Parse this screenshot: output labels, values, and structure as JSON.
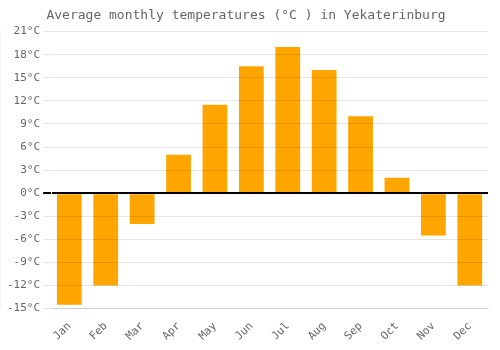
{
  "chart_data": {
    "type": "bar",
    "title": "Average monthly temperatures (°C ) in Yekaterinburg",
    "categories": [
      "Jan",
      "Feb",
      "Mar",
      "Apr",
      "May",
      "Jun",
      "Jul",
      "Aug",
      "Sep",
      "Oct",
      "Nov",
      "Dec"
    ],
    "values": [
      -14.5,
      -12.0,
      -4.0,
      5.0,
      11.5,
      16.5,
      19.0,
      16.0,
      10.0,
      2.0,
      -5.5,
      -12.0
    ],
    "color": "#FFA500",
    "ylim": [
      -15,
      21
    ],
    "yticks": [
      {
        "value": -15,
        "label": "-15°C"
      },
      {
        "value": -12,
        "label": "-12°C"
      },
      {
        "value": -9,
        "label": "-9°C"
      },
      {
        "value": -6,
        "label": "-6°C"
      },
      {
        "value": -3,
        "label": "-3°C"
      },
      {
        "value": 0,
        "label": "0°C"
      },
      {
        "value": 3,
        "label": "3°C"
      },
      {
        "value": 6,
        "label": "6°C"
      },
      {
        "value": 9,
        "label": "9°C"
      },
      {
        "value": 12,
        "label": "12°C"
      },
      {
        "value": 15,
        "label": "15°C"
      },
      {
        "value": 18,
        "label": "18°C"
      },
      {
        "value": 21,
        "label": "21°C"
      }
    ],
    "grid": true
  }
}
